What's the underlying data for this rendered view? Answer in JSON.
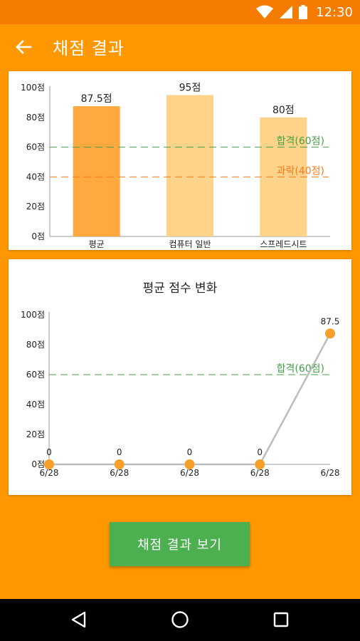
{
  "status_bar": {
    "time": "12:30",
    "icons": [
      "wifi-icon",
      "signal-icon",
      "battery-icon"
    ]
  },
  "app_bar": {
    "title": "채점 결과",
    "back_icon": "arrow-left-icon"
  },
  "bar_chart": {
    "chart_data": {
      "type": "bar",
      "categories": [
        "평균",
        "컴퓨터 일반",
        "스프레드시트"
      ],
      "values": [
        87.5,
        95,
        80
      ],
      "value_labels": [
        "87.5점",
        "95점",
        "80점"
      ],
      "colors": [
        "#ffa940",
        "#ffd38a",
        "#ffd38a"
      ],
      "ylim": [
        0,
        100
      ],
      "yticks": [
        {
          "value": 0,
          "label": "0점"
        },
        {
          "value": 20,
          "label": "20점"
        },
        {
          "value": 40,
          "label": "40점"
        },
        {
          "value": 60,
          "label": "60점"
        },
        {
          "value": 80,
          "label": "80점"
        },
        {
          "value": 100,
          "label": "100점"
        }
      ],
      "reference_lines": [
        {
          "value": 60,
          "label": "합격(60점)",
          "color": "#43a047"
        },
        {
          "value": 40,
          "label": "과락(40점)",
          "color": "#ff7a1a"
        }
      ]
    }
  },
  "line_chart": {
    "title": "평균 점수 변화",
    "chart_data": {
      "type": "line",
      "x": [
        "6/28",
        "6/28",
        "6/28",
        "6/28",
        "6/28"
      ],
      "values": [
        0,
        0,
        0,
        0,
        87.5
      ],
      "point_labels": [
        "0",
        "0",
        "0",
        "0",
        "87.5"
      ],
      "ylim": [
        0,
        100
      ],
      "yticks": [
        {
          "value": 0,
          "label": "0점"
        },
        {
          "value": 20,
          "label": "20점"
        },
        {
          "value": 40,
          "label": "40점"
        },
        {
          "value": 60,
          "label": "60점"
        },
        {
          "value": 80,
          "label": "80점"
        },
        {
          "value": 100,
          "label": "100점"
        }
      ],
      "point_color": "#f6a02a",
      "line_color": "#bdbdbd",
      "reference_lines": [
        {
          "value": 60,
          "label": "합격(60점)",
          "color": "#43a047"
        }
      ]
    }
  },
  "result_button": {
    "label": "채점 결과 보기",
    "color": "#4caf50"
  },
  "nav_bar": {
    "icons": [
      "back-triangle-icon",
      "home-circle-icon",
      "recents-square-icon"
    ]
  }
}
